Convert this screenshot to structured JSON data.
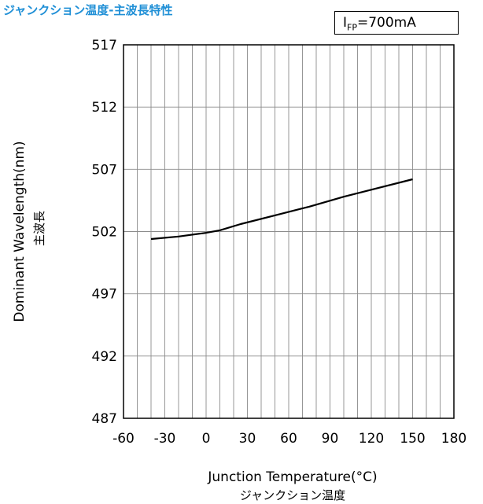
{
  "title": "ジャンクション温度-主波長特性",
  "condition": {
    "symbol": "I",
    "subscript": "FP",
    "value": "=700mA"
  },
  "chart_data": {
    "type": "line",
    "xlabel": "Junction Temperature(°C)",
    "xlabel_jp": "ジャンクション温度",
    "ylabel": "Dominant Wavelength(nm)",
    "ylabel_jp": "主波長",
    "xlim": [
      -60,
      180
    ],
    "ylim": [
      487,
      517
    ],
    "xticks": [
      -60,
      -30,
      0,
      30,
      60,
      90,
      120,
      150,
      180
    ],
    "yticks": [
      487,
      492,
      497,
      502,
      507,
      512,
      517
    ],
    "x_minor_step": 10,
    "y_minor_step": 1,
    "grid": true,
    "series": [
      {
        "x": [
          -40,
          -20,
          0,
          10,
          25,
          50,
          75,
          100,
          125,
          150
        ],
        "values": [
          501.4,
          501.6,
          501.9,
          502.1,
          502.6,
          503.3,
          504.0,
          504.8,
          505.5,
          506.2
        ]
      }
    ]
  }
}
